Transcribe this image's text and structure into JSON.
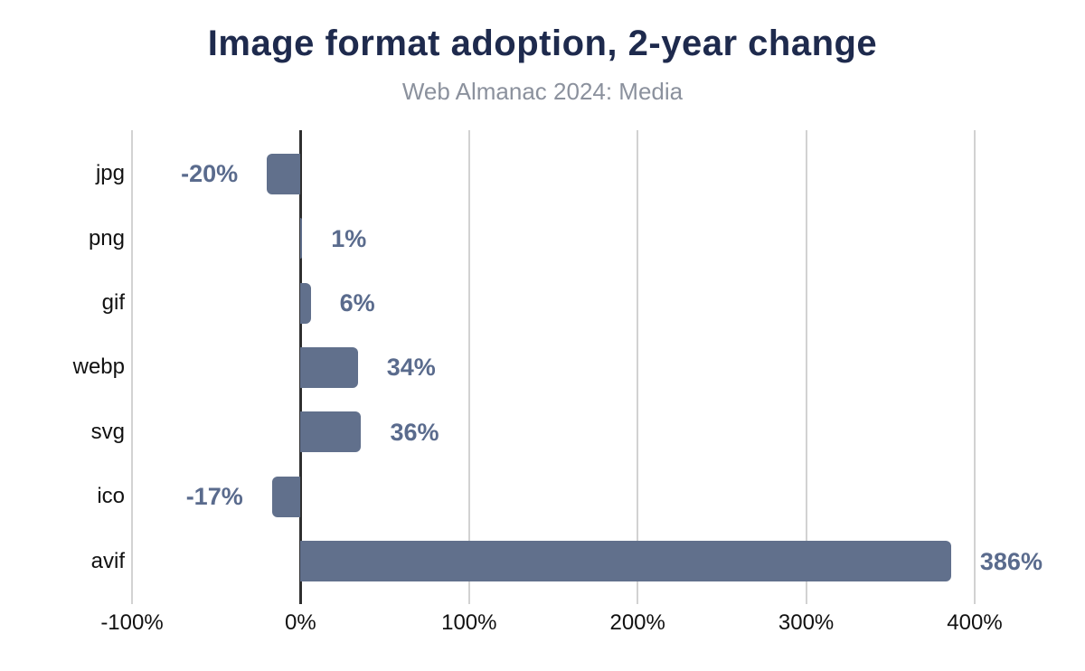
{
  "chart_data": {
    "type": "bar",
    "orientation": "horizontal",
    "title": "Image format adoption, 2-year change",
    "subtitle": "Web Almanac 2024: Media",
    "categories": [
      "jpg",
      "png",
      "gif",
      "webp",
      "svg",
      "ico",
      "avif"
    ],
    "values": [
      -20,
      1,
      6,
      34,
      36,
      -17,
      386
    ],
    "value_labels": [
      "-20%",
      "1%",
      "6%",
      "34%",
      "36%",
      "-17%",
      "386%"
    ],
    "xlim": [
      -100,
      400
    ],
    "x_ticks": [
      -100,
      0,
      100,
      200,
      300,
      400
    ],
    "x_tick_labels": [
      "-100%",
      "0%",
      "100%",
      "200%",
      "300%",
      "400%"
    ],
    "grid": "vertical-gridlines-on",
    "legend": "none",
    "colors": {
      "bar": "#61708c",
      "value_label": "#5a6b8d",
      "title": "#1e2a4d",
      "subtitle": "#8b919d",
      "axis_text": "#111111",
      "gridline": "#d2d2d2",
      "zero_line": "#2f2f2f",
      "background": "#ffffff"
    }
  }
}
